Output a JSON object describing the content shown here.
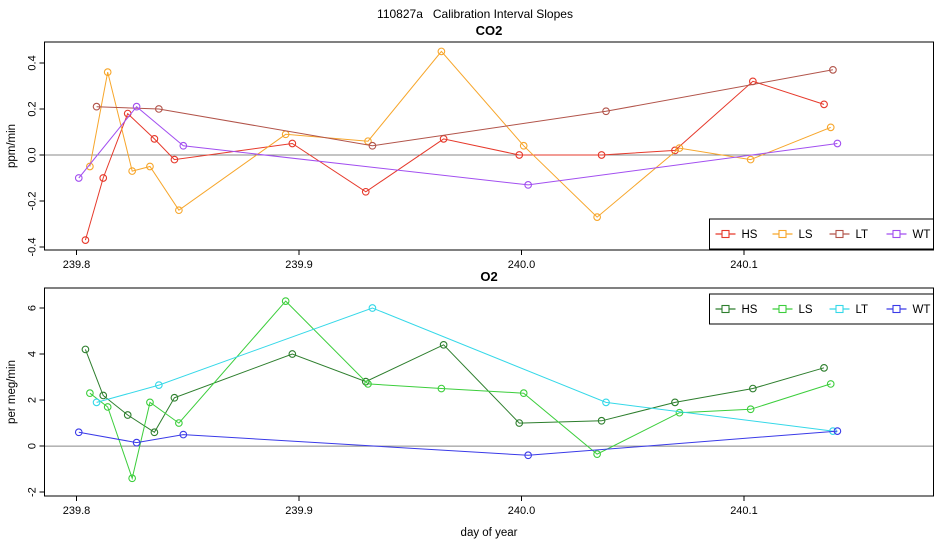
{
  "figure": {
    "title": "110827a   Calibration Interval Slopes",
    "background_color": "#ffffff",
    "box_color": "#000000",
    "zero_line_color": "#888888",
    "text_color": "#000000"
  },
  "chart_data": [
    {
      "type": "line",
      "title": "CO2",
      "xlabel": "",
      "ylabel": "ppm/min",
      "xlim": [
        239.7856,
        240.1852
      ],
      "ylim": [
        -0.413,
        0.491
      ],
      "xticks": [
        239.8,
        239.9,
        240.0,
        240.1
      ],
      "xtick_labels": [
        "239.8",
        "239.9",
        "240.0",
        "240.1"
      ],
      "yticks": [
        -0.4,
        -0.2,
        0.0,
        0.2,
        0.4
      ],
      "ytick_labels": [
        "-0.4",
        "-0.2",
        "0.0",
        "0.2",
        "0.4"
      ],
      "grid": false,
      "zero_line": true,
      "marker": "open-circle",
      "legend_position": "bottom-right",
      "series": [
        {
          "name": "HS",
          "color": "#E6392B",
          "x": [
            239.804,
            239.812,
            239.823,
            239.835,
            239.844,
            239.897,
            239.93,
            239.965,
            239.999,
            240.036,
            240.069,
            240.104,
            240.136
          ],
          "y": [
            -0.37,
            -0.1,
            0.18,
            0.07,
            -0.02,
            0.05,
            -0.16,
            0.07,
            0.0,
            0.0,
            0.02,
            0.32,
            0.22
          ]
        },
        {
          "name": "LS",
          "color": "#F7A62B",
          "x": [
            239.806,
            239.814,
            239.825,
            239.833,
            239.846,
            239.894,
            239.931,
            239.964,
            240.001,
            240.034,
            240.071,
            240.103,
            240.139
          ],
          "y": [
            -0.05,
            0.36,
            -0.07,
            -0.05,
            -0.24,
            0.09,
            0.06,
            0.45,
            0.04,
            -0.27,
            0.03,
            -0.02,
            0.12
          ]
        },
        {
          "name": "LT",
          "color": "#B2544A",
          "x": [
            239.809,
            239.837,
            239.933,
            240.038,
            240.14
          ],
          "y": [
            0.21,
            0.2,
            0.04,
            0.19,
            0.37
          ]
        },
        {
          "name": "WT",
          "color": "#A24FF0",
          "x": [
            239.801,
            239.827,
            239.848,
            240.003,
            240.142
          ],
          "y": [
            -0.1,
            0.21,
            0.04,
            -0.13,
            0.05
          ]
        }
      ]
    },
    {
      "type": "line",
      "title": "O2",
      "xlabel": "day of year",
      "ylabel": "per meg/min",
      "xlim": [
        239.7856,
        240.1852
      ],
      "ylim": [
        -2.17,
        6.87
      ],
      "xticks": [
        239.8,
        239.9,
        240.0,
        240.1
      ],
      "xtick_labels": [
        "239.8",
        "239.9",
        "240.0",
        "240.1"
      ],
      "yticks": [
        -2,
        0,
        2,
        4,
        6
      ],
      "ytick_labels": [
        "-2",
        "0",
        "2",
        "4",
        "6"
      ],
      "grid": false,
      "zero_line": true,
      "marker": "open-circle",
      "legend_position": "top-right",
      "series": [
        {
          "name": "HS",
          "color": "#2D7E2D",
          "x": [
            239.804,
            239.812,
            239.823,
            239.835,
            239.844,
            239.897,
            239.93,
            239.965,
            239.999,
            240.036,
            240.069,
            240.104,
            240.136
          ],
          "y": [
            4.2,
            2.2,
            1.35,
            0.6,
            2.1,
            4.0,
            2.8,
            4.4,
            1.0,
            1.1,
            1.9,
            2.5,
            3.4
          ]
        },
        {
          "name": "LS",
          "color": "#3CCE3C",
          "x": [
            239.806,
            239.814,
            239.825,
            239.833,
            239.846,
            239.894,
            239.931,
            239.964,
            240.001,
            240.034,
            240.071,
            240.103,
            240.139
          ],
          "y": [
            2.3,
            1.7,
            -1.4,
            1.9,
            1.0,
            6.3,
            2.7,
            2.5,
            2.3,
            -0.35,
            1.45,
            1.6,
            2.7
          ]
        },
        {
          "name": "LT",
          "color": "#35D8E8",
          "x": [
            239.809,
            239.837,
            239.933,
            240.038,
            240.14
          ],
          "y": [
            1.9,
            2.65,
            6.0,
            1.9,
            0.65
          ]
        },
        {
          "name": "WT",
          "color": "#3A3AE8",
          "x": [
            239.801,
            239.827,
            239.848,
            240.003,
            240.142
          ],
          "y": [
            0.6,
            0.15,
            0.5,
            -0.4,
            0.65
          ]
        }
      ]
    }
  ]
}
